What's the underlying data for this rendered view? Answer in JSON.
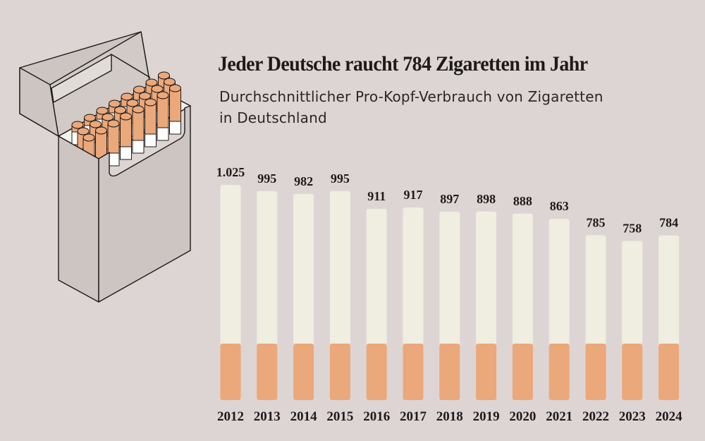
{
  "title": "Jeder Deutsche raucht 784 Zigaretten im Jahr",
  "subtitle": "Durchschnittlicher Pro-Kopf-Verbrauch von Zigaretten in Deutschland",
  "illustration": "cigarette-pack-icon",
  "colors": {
    "background": "#ddd5d3",
    "paper": "#efeee0",
    "filter": "#eba87a",
    "text": "#1e1a1a",
    "pack": "#cdc5c1"
  },
  "chart_data": {
    "type": "bar",
    "title": "Jeder Deutsche raucht 784 Zigaretten im Jahr",
    "subtitle": "Durchschnittlicher Pro-Kopf-Verbrauch von Zigaretten in Deutschland",
    "categories": [
      "2012",
      "2013",
      "2014",
      "2015",
      "2016",
      "2017",
      "2018",
      "2019",
      "2020",
      "2021",
      "2022",
      "2023",
      "2024"
    ],
    "values": [
      1025,
      995,
      982,
      995,
      911,
      917,
      897,
      898,
      888,
      863,
      785,
      758,
      784
    ],
    "value_labels": [
      "1.025",
      "995",
      "982",
      "995",
      "911",
      "917",
      "897",
      "898",
      "888",
      "863",
      "785",
      "758",
      "784"
    ],
    "xlabel": "",
    "ylabel": "",
    "ylim": [
      0,
      1025
    ],
    "grid": false,
    "bar_style": "cigarette"
  }
}
